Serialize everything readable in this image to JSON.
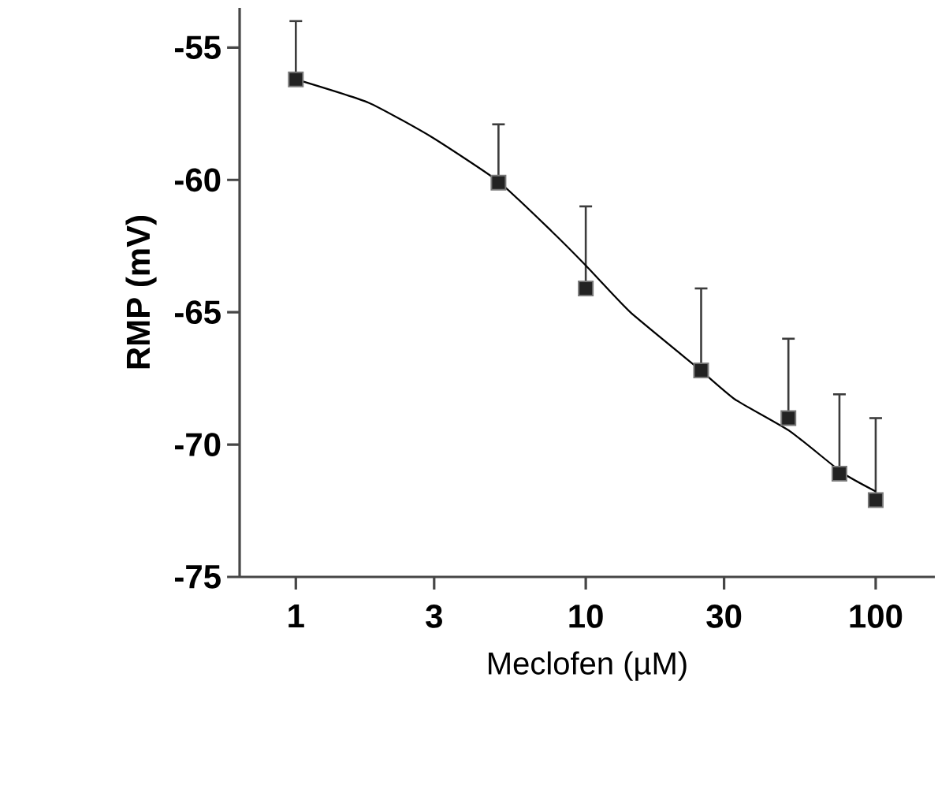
{
  "chart_data": {
    "type": "scatter",
    "xlabel": "Meclofen (µM)",
    "ylabel": "RMP (mV)",
    "log": "x",
    "xlim": [
      0.64,
      160
    ],
    "ylim": [
      -75,
      -53.5
    ],
    "xticks": [
      1,
      3,
      10,
      30,
      100
    ],
    "yticks": [
      -75,
      -70,
      -65,
      -60,
      -55
    ],
    "marker": "square",
    "series": [
      {
        "color": "#222222",
        "x": [
          1,
          5,
          10,
          25,
          50,
          75,
          100
        ],
        "values": [
          -56.2,
          -60.1,
          -64.1,
          -67.2,
          -69.0,
          -71.1,
          -72.1
        ],
        "errors": [
          [
            -56.2,
            -54.0
          ],
          [
            -60.1,
            -57.9
          ],
          [
            -64.1,
            -61.0
          ],
          [
            -67.2,
            -64.1
          ],
          [
            -69.0,
            -66.0
          ],
          [
            -71.1,
            -68.1
          ],
          [
            -72.1,
            -69.0
          ]
        ]
      },
      {
        "type": "line",
        "color": "#000000",
        "marker": "none",
        "x": [
          1,
          1.78,
          2.93,
          5.0,
          7.63,
          10,
          14.25,
          24.8,
          32.8,
          50.7,
          76.9,
          100
        ],
        "values": [
          -56.2,
          -57.08,
          -58.37,
          -60.06,
          -61.94,
          -63.23,
          -65.0,
          -67.18,
          -68.3,
          -69.5,
          -71.07,
          -71.77
        ]
      }
    ]
  }
}
